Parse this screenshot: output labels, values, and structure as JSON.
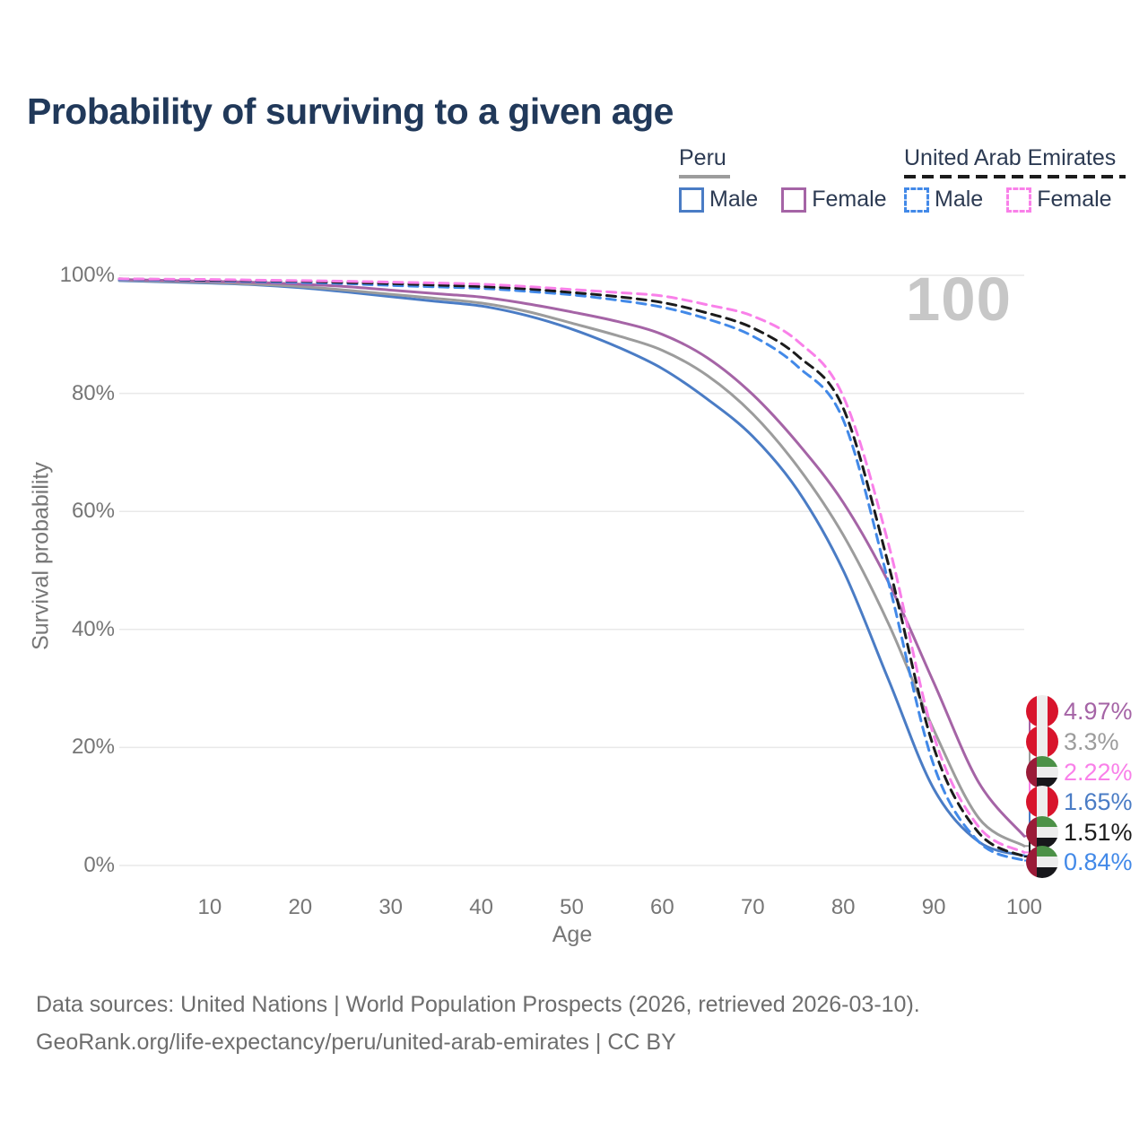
{
  "title": "Probability of surviving to a given age",
  "watermark": "100",
  "legend": {
    "groups": [
      {
        "name": "Peru",
        "line_style": "solid",
        "underline_color": "#9c9c9c",
        "items": [
          {
            "label": "Male",
            "color": "#4a7cc5",
            "dashed": false
          },
          {
            "label": "Female",
            "color": "#a564a6",
            "dashed": false
          }
        ]
      },
      {
        "name": "United Arab Emirates",
        "line_style": "dashed",
        "underline_color": "#1b1b1b",
        "items": [
          {
            "label": "Male",
            "color": "#4289e8",
            "dashed": true
          },
          {
            "label": "Female",
            "color": "#f980e9",
            "dashed": true
          }
        ]
      }
    ]
  },
  "chart_data": {
    "type": "line",
    "title": "Probability of surviving to a given age",
    "xlabel": "Age",
    "ylabel": "Survival probability",
    "xlim": [
      0,
      100
    ],
    "ylim": [
      0,
      100
    ],
    "grid": true,
    "x_ticks": [
      10,
      20,
      30,
      40,
      50,
      60,
      70,
      80,
      90,
      100
    ],
    "y_tick_values": [
      0,
      20,
      40,
      60,
      80,
      100
    ],
    "y_tick_labels": [
      "0%",
      "20%",
      "40%",
      "60%",
      "80%",
      "100%"
    ],
    "ages": [
      0,
      5,
      10,
      15,
      20,
      25,
      30,
      35,
      40,
      45,
      50,
      55,
      60,
      65,
      70,
      75,
      80,
      85,
      90,
      95,
      100
    ],
    "series": [
      {
        "name": "Peru Male",
        "color": "#4a7cc5",
        "dashed": false,
        "flag": "peru",
        "values": [
          99.1,
          98.9,
          98.7,
          98.4,
          97.9,
          97.2,
          96.4,
          95.6,
          94.8,
          93.2,
          90.9,
          87.9,
          84.2,
          79.0,
          72.7,
          63.5,
          50.0,
          31.5,
          13.0,
          4.0,
          1.65
        ]
      },
      {
        "name": "Peru (both sexes)",
        "color": "#9c9c9c",
        "dashed": false,
        "flag": "peru",
        "values": [
          99.2,
          99.0,
          98.8,
          98.5,
          98.1,
          97.5,
          96.8,
          96.1,
          95.3,
          93.9,
          91.9,
          89.8,
          87.3,
          83.0,
          76.5,
          67.5,
          56.0,
          41.0,
          23.0,
          8.0,
          3.3
        ]
      },
      {
        "name": "Peru Female",
        "color": "#a564a6",
        "dashed": false,
        "flag": "peru",
        "values": [
          99.3,
          99.15,
          99.0,
          98.8,
          98.5,
          98.1,
          97.5,
          96.9,
          96.3,
          95.2,
          93.8,
          92.2,
          90.0,
          86.0,
          79.8,
          71.5,
          61.5,
          48.0,
          31.0,
          14.0,
          4.97
        ]
      },
      {
        "name": "United Arab Emirates Male",
        "color": "#4289e8",
        "dashed": true,
        "flag": "uae",
        "values": [
          99.3,
          99.2,
          99.1,
          98.95,
          98.8,
          98.6,
          98.3,
          98.05,
          97.8,
          97.3,
          96.7,
          95.8,
          94.6,
          92.6,
          89.7,
          84.5,
          75.5,
          48.0,
          17.0,
          4.0,
          0.84
        ]
      },
      {
        "name": "United Arab Emirates (both sexes)",
        "color": "#1b1b1b",
        "dashed": true,
        "flag": "uae",
        "values": [
          99.4,
          99.3,
          99.2,
          99.1,
          99.0,
          98.8,
          98.6,
          98.35,
          98.1,
          97.7,
          97.1,
          96.4,
          95.4,
          93.6,
          91.1,
          86.3,
          77.5,
          51.0,
          20.0,
          5.5,
          1.51
        ]
      },
      {
        "name": "United Arab Emirates Female",
        "color": "#f980e9",
        "dashed": true,
        "flag": "uae",
        "values": [
          99.4,
          99.35,
          99.3,
          99.2,
          99.1,
          99.0,
          98.85,
          98.7,
          98.5,
          98.1,
          97.6,
          97.1,
          96.5,
          95.0,
          93.1,
          88.8,
          79.5,
          54.5,
          22.0,
          6.5,
          2.22
        ]
      }
    ],
    "end_labels": [
      {
        "label": "4.97%",
        "series_index": 2,
        "color": "#a564a6",
        "flag": "peru"
      },
      {
        "label": "3.3%",
        "series_index": 1,
        "color": "#9c9c9c",
        "flag": "peru"
      },
      {
        "label": "2.22%",
        "series_index": 5,
        "color": "#f980e9",
        "flag": "uae"
      },
      {
        "label": "1.65%",
        "series_index": 0,
        "color": "#4a7cc5",
        "flag": "peru"
      },
      {
        "label": "1.51%",
        "series_index": 4,
        "color": "#1b1b1b",
        "flag": "uae"
      },
      {
        "label": "0.84%",
        "series_index": 3,
        "color": "#4289e8",
        "flag": "uae"
      }
    ]
  },
  "footer": {
    "line1": "Data sources: United Nations | World Population Prospects (2026, retrieved 2026-03-10).",
    "line2": "GeoRank.org/life-expectancy/peru/united-arab-emirates | CC BY"
  }
}
